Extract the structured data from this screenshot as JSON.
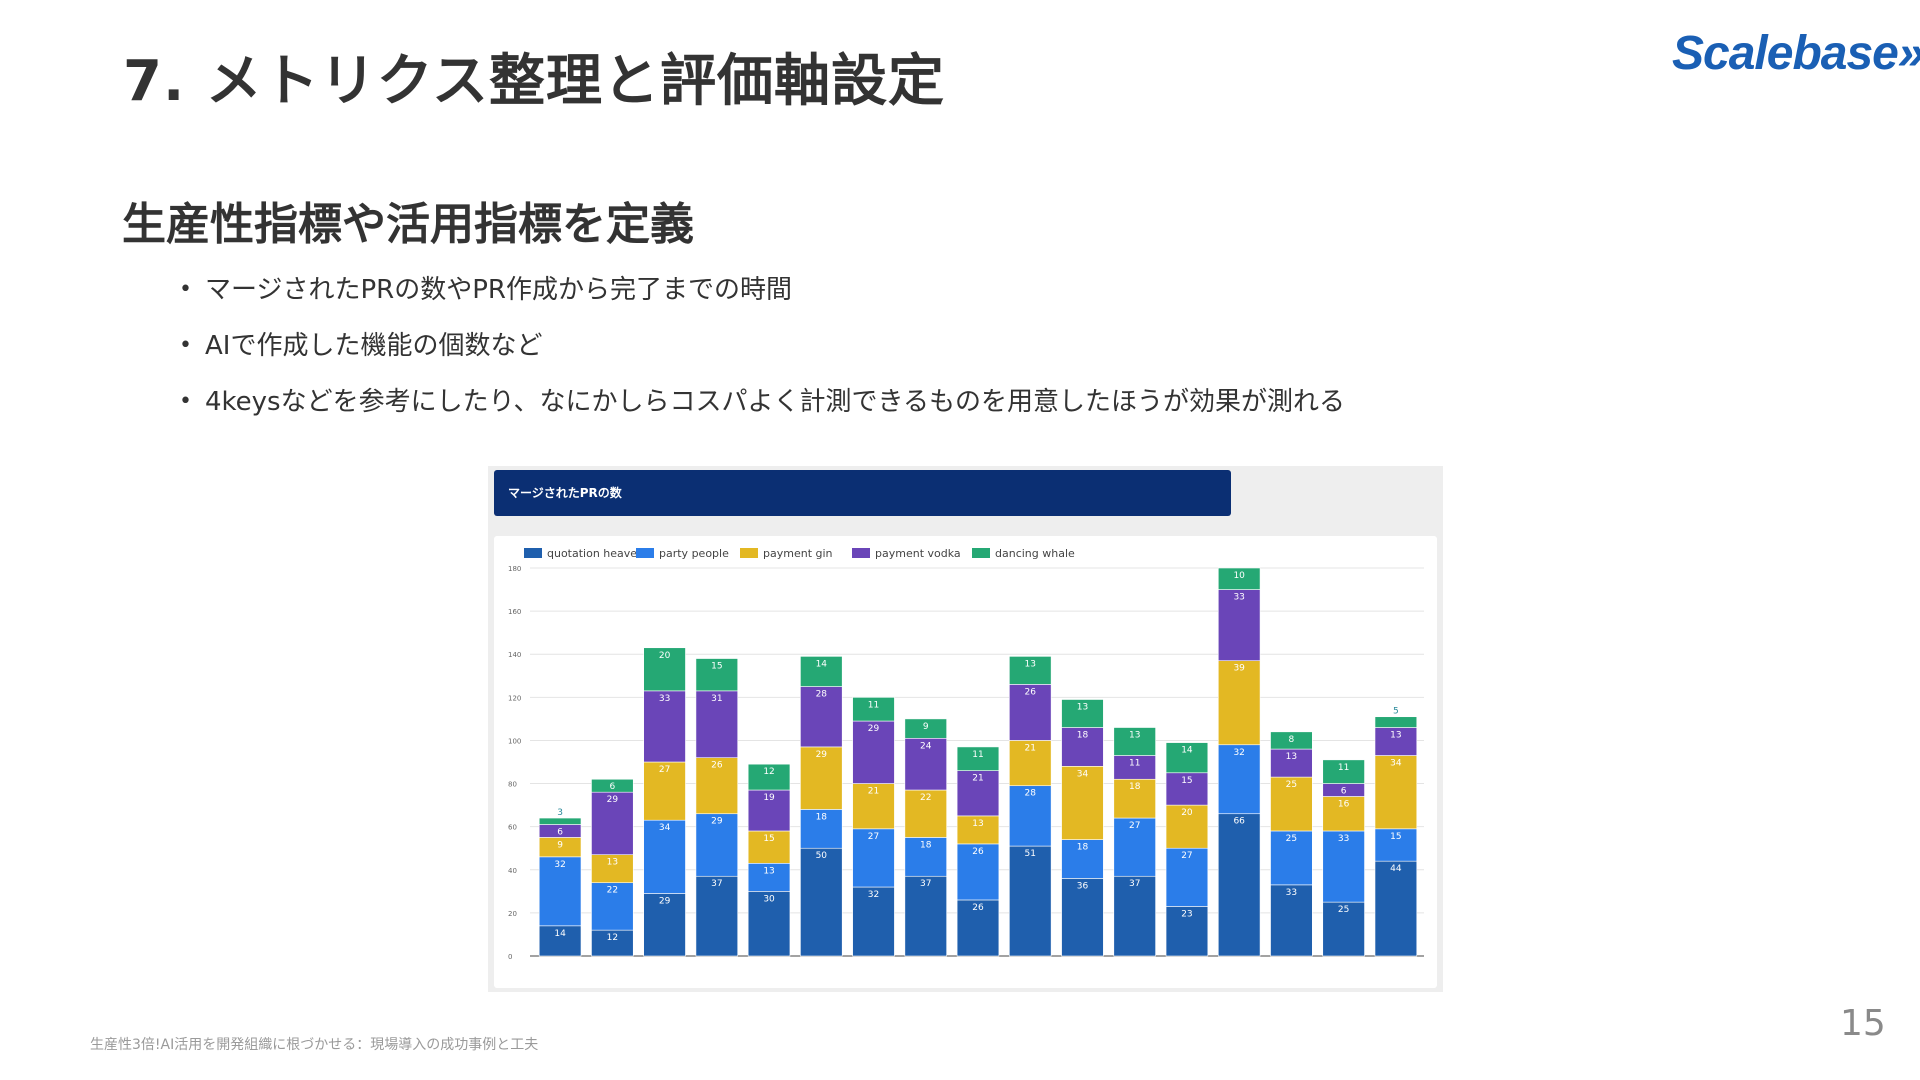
{
  "slide": {
    "title": "7. メトリクス整理と評価軸設定",
    "logo": "Scalebase»",
    "subtitle": "生産性指標や活用指標を定義",
    "bullets": [
      "マージされたPRの数やPR作成から完了までの時間",
      "AIで作成した機能の個数など",
      "4keysなどを参考にしたり、なにかしらコスパよく計測できるものを用意したほうが効果が測れる"
    ],
    "footer": "生産性3倍!AI活用を開発組織に根づかせる：現場導入の成功事例と工夫",
    "page_number": "15"
  },
  "colors": {
    "quotation_heaven": "#1f5fad",
    "party_people": "#2b7de9",
    "payment_gin": "#e3b823",
    "payment_vodka": "#6a45b8",
    "dancing_whale": "#25a874",
    "banner": "#0b2f73"
  },
  "chart_data": {
    "type": "bar",
    "stacked": true,
    "title": "マージされたPRの数",
    "series": [
      {
        "name": "quotation heaven",
        "color": "#1f5fad",
        "values": [
          14,
          12,
          29,
          37,
          30,
          50,
          32,
          37,
          26,
          51,
          36,
          37,
          23,
          66,
          33,
          25,
          44
        ]
      },
      {
        "name": "party people",
        "color": "#2b7de9",
        "values": [
          32,
          22,
          34,
          29,
          13,
          18,
          27,
          18,
          26,
          28,
          18,
          27,
          27,
          32,
          25,
          33,
          15
        ]
      },
      {
        "name": "payment gin",
        "color": "#e3b823",
        "values": [
          9,
          13,
          27,
          26,
          15,
          29,
          21,
          22,
          13,
          21,
          34,
          18,
          20,
          39,
          25,
          16,
          34
        ]
      },
      {
        "name": "payment vodka",
        "color": "#6a45b8",
        "values": [
          6,
          29,
          33,
          31,
          19,
          28,
          29,
          24,
          21,
          26,
          18,
          11,
          15,
          33,
          13,
          6,
          13
        ]
      },
      {
        "name": "dancing whale",
        "color": "#25a874",
        "values": [
          3,
          6,
          20,
          15,
          12,
          14,
          11,
          9,
          11,
          13,
          13,
          13,
          14,
          10,
          8,
          11,
          5
        ]
      }
    ],
    "categories": [
      "",
      "",
      "",
      "",
      "",
      "",
      "",
      "",
      "",
      "",
      "",
      "",
      "",
      "",
      "",
      "",
      ""
    ],
    "yticks": [
      0,
      20,
      40,
      60,
      80,
      100,
      120,
      140,
      160,
      180
    ],
    "ylim": [
      0,
      180
    ],
    "grid": true,
    "legend_position": "top-left"
  }
}
